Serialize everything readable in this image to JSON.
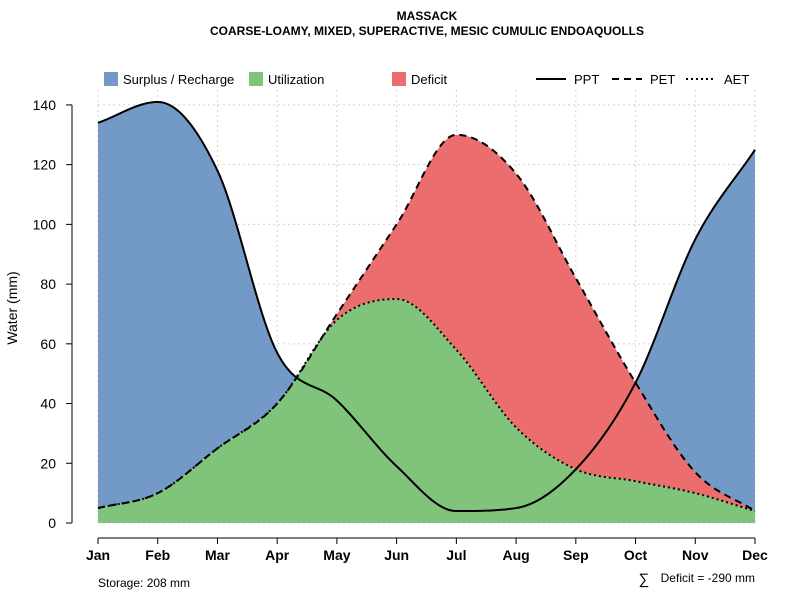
{
  "chart_data": {
    "type": "area",
    "title": "MASSACK",
    "subtitle": "COARSE-LOAMY, MIXED, SUPERACTIVE, MESIC CUMULIC ENDOAQUOLLS",
    "xlabel": "",
    "ylabel": "Water (mm)",
    "ylim": [
      0,
      145
    ],
    "yticks": [
      0,
      20,
      40,
      60,
      80,
      100,
      120,
      140
    ],
    "categories": [
      "Jan",
      "Feb",
      "Mar",
      "Apr",
      "May",
      "Jun",
      "Jul",
      "Aug",
      "Sep",
      "Oct",
      "Nov",
      "Dec"
    ],
    "grid": true,
    "legend_position": "top",
    "series": [
      {
        "name": "PPT",
        "style": "solid",
        "values": [
          134,
          141,
          118,
          57,
          41,
          19,
          4,
          5,
          18,
          47,
          95,
          125
        ]
      },
      {
        "name": "PET",
        "style": "dashed",
        "values": [
          5,
          10,
          25,
          40,
          70,
          100,
          130,
          117,
          82,
          47,
          17,
          4
        ]
      },
      {
        "name": "AET",
        "style": "dotted",
        "values": [
          5,
          10,
          25,
          40,
          68,
          75,
          58,
          32,
          18,
          14,
          10,
          4
        ]
      }
    ],
    "areas": [
      {
        "name": "Surplus / Recharge",
        "color": "#7399c6"
      },
      {
        "name": "Utilization",
        "color": "#80c47c"
      },
      {
        "name": "Deficit",
        "color": "#eb6d6e"
      }
    ],
    "annotations": {
      "storage": "Storage: 208 mm",
      "deficit_symbol": "∑",
      "deficit": "Deficit = -290 mm"
    }
  }
}
